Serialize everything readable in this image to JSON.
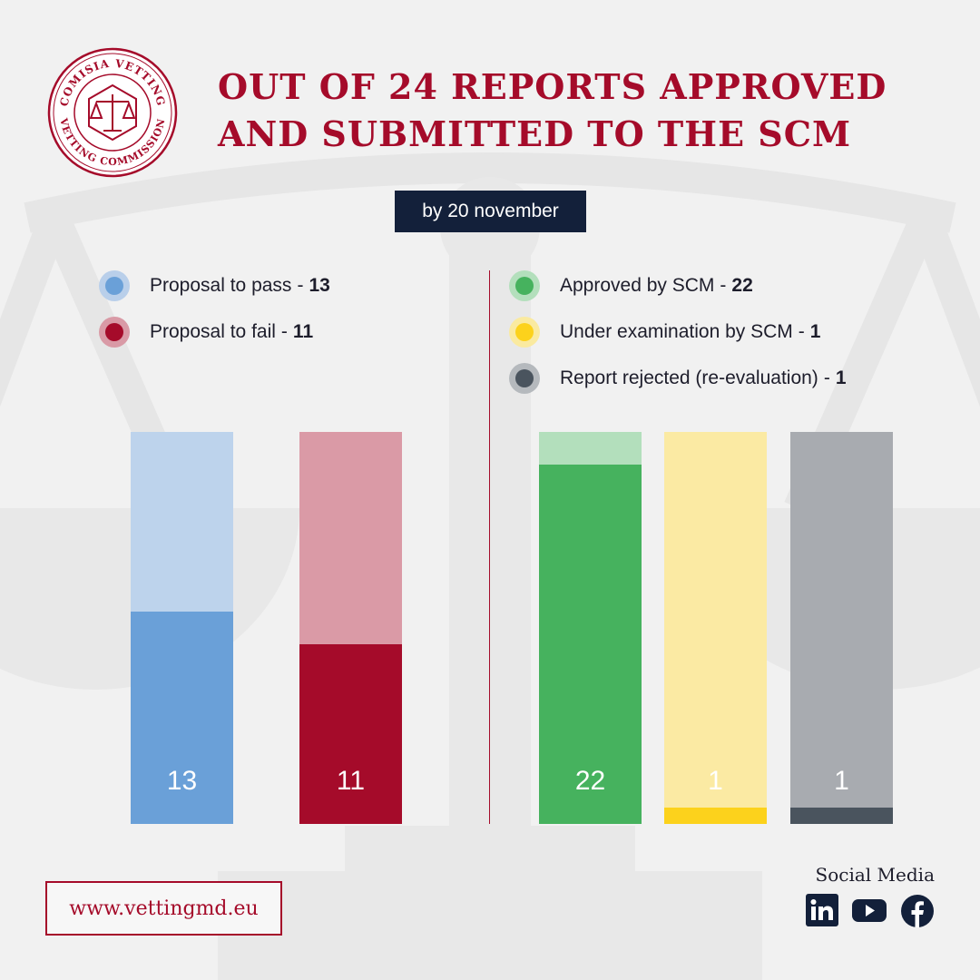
{
  "logo": {
    "top_text": "COMISIA VETTING",
    "bottom_text": "VETTING COMMISSION",
    "color": "#a50b2a",
    "icon": "scales-of-justice-icon"
  },
  "title": {
    "line1": "OUT OF 24 REPORTS APPROVED",
    "line2": "AND SUBMITTED TO THE SCM"
  },
  "date_badge": "by 20 november",
  "legend": {
    "left": [
      {
        "label": "Proposal to pass",
        "value": "13",
        "color": "#6aa0d8",
        "halo": "#b9cfea"
      },
      {
        "label": "Proposal to fail",
        "value": "11",
        "color": "#a50b2a",
        "halo": "#d99aa6"
      }
    ],
    "right": [
      {
        "label": "Approved by SCM",
        "value": "22",
        "color": "#46b25e",
        "halo": "#b3dfbc"
      },
      {
        "label": "Under examination by SCM",
        "value": "1",
        "color": "#fcd21c",
        "halo": "#faeaa0"
      },
      {
        "label": "Report rejected (re-evaluation)",
        "value": "1",
        "color": "#4a545e",
        "halo": "#b5b9bd"
      }
    ]
  },
  "chart_data": {
    "type": "bar",
    "total": 24,
    "ylim": [
      0,
      24
    ],
    "categories": [
      "Proposal to pass",
      "Proposal to fail",
      "Approved by SCM",
      "Under examination by SCM",
      "Report rejected (re-evaluation)"
    ],
    "values": [
      13,
      11,
      22,
      1,
      1
    ],
    "colors": [
      "#6aa0d8",
      "#a50b2a",
      "#46b25e",
      "#fcd21c",
      "#4a545e"
    ],
    "background_colors": [
      "#bdd3ec",
      "#da9aa6",
      "#b3dfbc",
      "#fbeaa3",
      "#a8abb0"
    ],
    "data_labels": [
      "13",
      "11",
      "22",
      "1",
      "1"
    ]
  },
  "footer": {
    "website": "www.vettingmd.eu",
    "social_title": "Social Media",
    "social_icons": [
      "linkedin-icon",
      "youtube-icon",
      "facebook-icon"
    ]
  }
}
